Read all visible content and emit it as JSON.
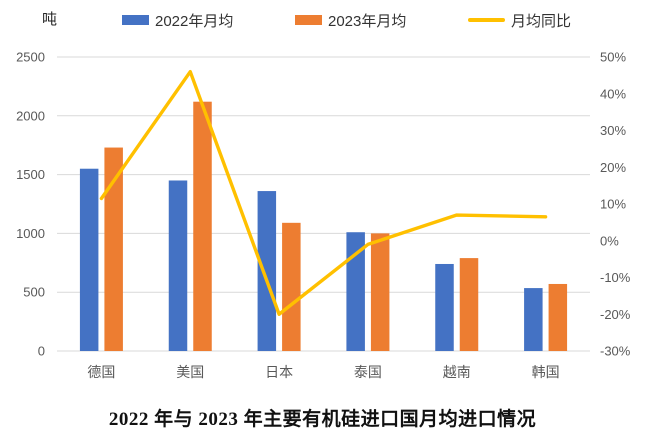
{
  "chart_data": {
    "type": "bar+line",
    "title": "2022 年与 2023 年主要有机硅进口国月均进口情况",
    "categories": [
      "德国",
      "美国",
      "日本",
      "泰国",
      "越南",
      "韩国"
    ],
    "series": [
      {
        "name": "2022年月均",
        "type": "bar",
        "axis": "left",
        "color": "#4472C4",
        "values": [
          1550,
          1450,
          1360,
          1010,
          740,
          535
        ]
      },
      {
        "name": "2023年月均",
        "type": "bar",
        "axis": "left",
        "color": "#ED7D31",
        "values": [
          1730,
          2120,
          1090,
          1000,
          790,
          570
        ]
      },
      {
        "name": "月均同比",
        "type": "line",
        "axis": "right",
        "color": "#FFC000",
        "unit": "%",
        "values": [
          11.5,
          46,
          -20,
          -1,
          7,
          6.5
        ]
      }
    ],
    "left_axis": {
      "label": "吨",
      "min": 0,
      "max": 2500,
      "step": 500,
      "tick_labels": [
        "2500",
        "2000",
        "1500",
        "1000",
        "500",
        "0"
      ]
    },
    "right_axis": {
      "min": -30,
      "max": 50,
      "step": 10,
      "tick_labels": [
        "50%",
        "40%",
        "30%",
        "20%",
        "10%",
        "0%",
        "-10%",
        "-20%",
        "-30%"
      ]
    },
    "grid": true,
    "legend_position": "top",
    "colors": {
      "grid": "#D9D9D9",
      "axis_text": "#595959",
      "title_text": "#111111",
      "background": "#FFFFFF"
    }
  }
}
